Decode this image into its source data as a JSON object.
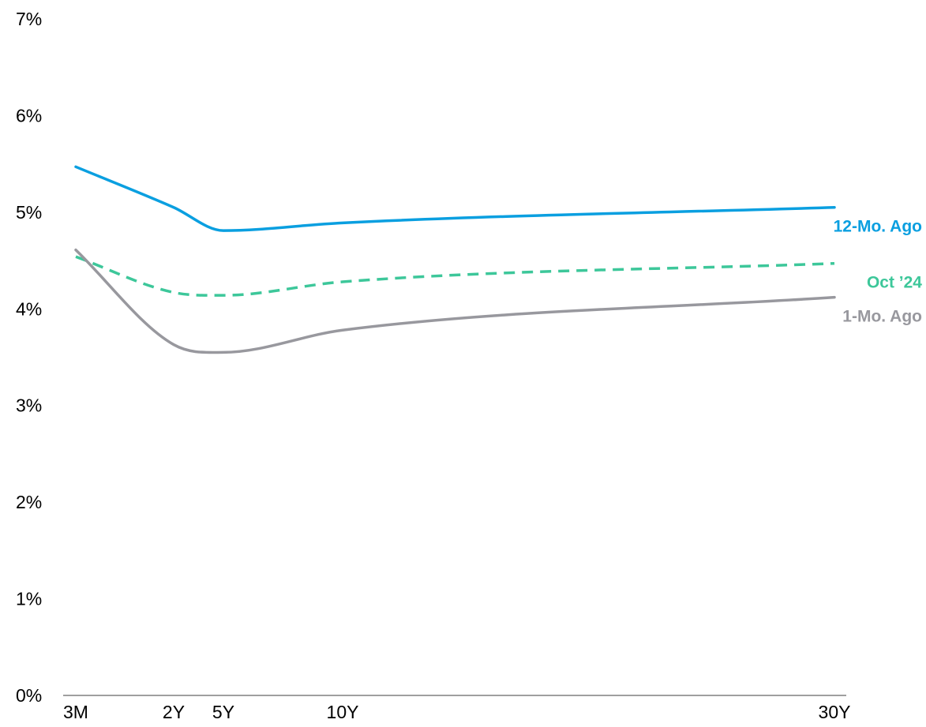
{
  "chart_data": {
    "type": "line",
    "x_categories": [
      "3M",
      "2Y",
      "5Y",
      "10Y",
      "30Y"
    ],
    "y_ticks": [
      "0%",
      "1%",
      "2%",
      "3%",
      "4%",
      "5%",
      "6%",
      "7%"
    ],
    "ylim": [
      0,
      7
    ],
    "grid": false,
    "series": [
      {
        "name": "12-Mo. Ago",
        "color": "#0A9FE0",
        "style": "solid",
        "points": [
          {
            "x": "3M",
            "y": 5.47
          },
          {
            "x": "2Y",
            "y": 5.05
          },
          {
            "x": "5Y",
            "y": 4.81
          },
          {
            "x": "10Y",
            "y": 4.89
          },
          {
            "x": "30Y",
            "y": 5.05
          }
        ]
      },
      {
        "name": "Oct ’24",
        "color": "#3DC79A",
        "style": "dashed",
        "points": [
          {
            "x": "3M",
            "y": 4.54
          },
          {
            "x": "2Y",
            "y": 4.17
          },
          {
            "x": "5Y",
            "y": 4.14
          },
          {
            "x": "10Y",
            "y": 4.28
          },
          {
            "x": "30Y",
            "y": 4.47
          }
        ]
      },
      {
        "name": "1-Mo. Ago",
        "color": "#98989E",
        "style": "solid",
        "points": [
          {
            "x": "3M",
            "y": 4.61
          },
          {
            "x": "2Y",
            "y": 3.63
          },
          {
            "x": "5Y",
            "y": 3.55
          },
          {
            "x": "10Y",
            "y": 3.78
          },
          {
            "x": "30Y",
            "y": 4.12
          }
        ]
      }
    ]
  }
}
